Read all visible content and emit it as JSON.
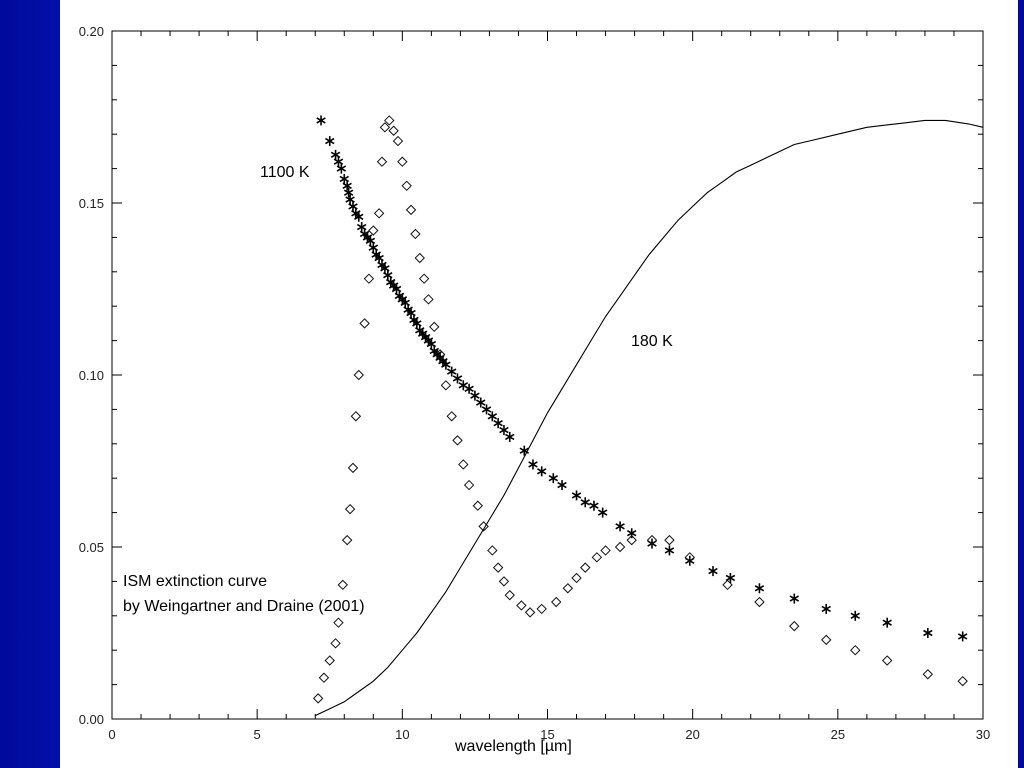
{
  "chart_data": {
    "type": "scatter",
    "title": "",
    "xlabel": "wavelength [µm]",
    "ylabel": "",
    "xlim": [
      0,
      30
    ],
    "ylim": [
      0,
      0.2
    ],
    "grid": false,
    "x_ticks": [
      0,
      5,
      10,
      15,
      20,
      25,
      30
    ],
    "x_tick_labels": [
      "0",
      "5",
      "10",
      "15",
      "20",
      "25",
      "30"
    ],
    "y_ticks": [
      0.0,
      0.05,
      0.1,
      0.15,
      0.2
    ],
    "y_tick_labels": [
      "0.00",
      "0.05",
      "0.10",
      "0.15",
      "0.20"
    ],
    "annotations": {
      "label_1100": "1100 K",
      "label_180": "180 K",
      "ism_line1": "ISM extinction curve",
      "ism_line2": "by Weingartner and Draine (2001)"
    },
    "series": [
      {
        "label": "1100 K",
        "style": "asterisk",
        "x": [
          7.2,
          7.5,
          7.7,
          7.8,
          7.9,
          8.0,
          8.1,
          8.15,
          8.2,
          8.3,
          8.4,
          8.5,
          8.6,
          8.7,
          8.8,
          8.9,
          9.0,
          9.1,
          9.2,
          9.3,
          9.4,
          9.5,
          9.6,
          9.7,
          9.8,
          9.9,
          10.0,
          10.1,
          10.2,
          10.3,
          10.4,
          10.5,
          10.6,
          10.7,
          10.8,
          10.9,
          11.0,
          11.1,
          11.2,
          11.3,
          11.4,
          11.5,
          11.7,
          11.9,
          12.1,
          12.3,
          12.5,
          12.7,
          12.9,
          13.1,
          13.3,
          13.5,
          13.7,
          14.2,
          14.5,
          14.8,
          15.2,
          15.5,
          16.0,
          16.3,
          16.6,
          16.9,
          17.5,
          17.9,
          18.6,
          19.2,
          19.9,
          20.7,
          21.3,
          22.3,
          23.5,
          24.6,
          25.6,
          26.7,
          28.1,
          29.3
        ],
        "y": [
          0.174,
          0.168,
          0.164,
          0.162,
          0.16,
          0.157,
          0.155,
          0.153,
          0.151,
          0.149,
          0.147,
          0.146,
          0.143,
          0.141,
          0.14,
          0.139,
          0.137,
          0.135,
          0.134,
          0.132,
          0.131,
          0.129,
          0.127,
          0.126,
          0.125,
          0.123,
          0.122,
          0.121,
          0.119,
          0.118,
          0.116,
          0.115,
          0.113,
          0.112,
          0.111,
          0.11,
          0.109,
          0.107,
          0.106,
          0.105,
          0.104,
          0.103,
          0.101,
          0.099,
          0.097,
          0.096,
          0.094,
          0.092,
          0.09,
          0.088,
          0.086,
          0.084,
          0.082,
          0.078,
          0.074,
          0.072,
          0.07,
          0.068,
          0.065,
          0.063,
          0.062,
          0.06,
          0.056,
          0.054,
          0.051,
          0.049,
          0.046,
          0.043,
          0.041,
          0.038,
          0.035,
          0.032,
          0.03,
          0.028,
          0.025,
          0.024
        ]
      },
      {
        "label": "ISM extinction curve",
        "style": "diamond",
        "x": [
          7.1,
          7.3,
          7.5,
          7.7,
          7.8,
          7.95,
          8.1,
          8.2,
          8.3,
          8.4,
          8.5,
          8.7,
          8.85,
          9.0,
          9.2,
          9.3,
          9.4,
          9.55,
          9.7,
          9.85,
          10.0,
          10.15,
          10.3,
          10.45,
          10.6,
          10.75,
          10.9,
          11.1,
          11.3,
          11.5,
          11.7,
          11.9,
          12.1,
          12.3,
          12.6,
          12.8,
          13.1,
          13.3,
          13.5,
          13.7,
          14.1,
          14.4,
          14.8,
          15.3,
          15.7,
          16.0,
          16.3,
          16.7,
          17.0,
          17.5,
          17.9,
          18.6,
          19.2,
          19.9,
          21.2,
          22.3,
          23.5,
          24.6,
          25.6,
          26.7,
          28.1,
          29.3
        ],
        "y": [
          0.006,
          0.012,
          0.017,
          0.022,
          0.028,
          0.039,
          0.052,
          0.061,
          0.073,
          0.088,
          0.1,
          0.115,
          0.128,
          0.142,
          0.147,
          0.162,
          0.172,
          0.174,
          0.171,
          0.168,
          0.162,
          0.155,
          0.148,
          0.141,
          0.134,
          0.128,
          0.122,
          0.114,
          0.106,
          0.097,
          0.088,
          0.081,
          0.074,
          0.068,
          0.062,
          0.056,
          0.049,
          0.044,
          0.04,
          0.036,
          0.033,
          0.031,
          0.032,
          0.034,
          0.038,
          0.041,
          0.044,
          0.047,
          0.049,
          0.05,
          0.052,
          0.052,
          0.052,
          0.047,
          0.039,
          0.034,
          0.027,
          0.023,
          0.02,
          0.017,
          0.013,
          0.011
        ]
      },
      {
        "label": "180 K",
        "style": "line",
        "x": [
          7.0,
          7.5,
          8.0,
          8.5,
          9.0,
          9.5,
          10.0,
          10.5,
          11.0,
          11.5,
          12.0,
          12.5,
          13.0,
          13.5,
          14.0,
          14.5,
          15.0,
          15.5,
          16.0,
          16.5,
          17.0,
          17.5,
          18.0,
          18.5,
          19.0,
          19.5,
          20.0,
          20.5,
          21.0,
          21.5,
          22.0,
          22.5,
          23.0,
          23.5,
          24.0,
          25.0,
          26.0,
          27.0,
          28.0,
          28.7,
          29.5,
          30.0
        ],
        "y": [
          0.001,
          0.003,
          0.005,
          0.008,
          0.011,
          0.015,
          0.02,
          0.025,
          0.031,
          0.037,
          0.044,
          0.051,
          0.058,
          0.065,
          0.073,
          0.081,
          0.089,
          0.096,
          0.103,
          0.11,
          0.117,
          0.123,
          0.129,
          0.135,
          0.14,
          0.145,
          0.149,
          0.153,
          0.156,
          0.159,
          0.161,
          0.163,
          0.165,
          0.167,
          0.168,
          0.17,
          0.172,
          0.173,
          0.174,
          0.174,
          0.173,
          0.172
        ]
      }
    ]
  }
}
